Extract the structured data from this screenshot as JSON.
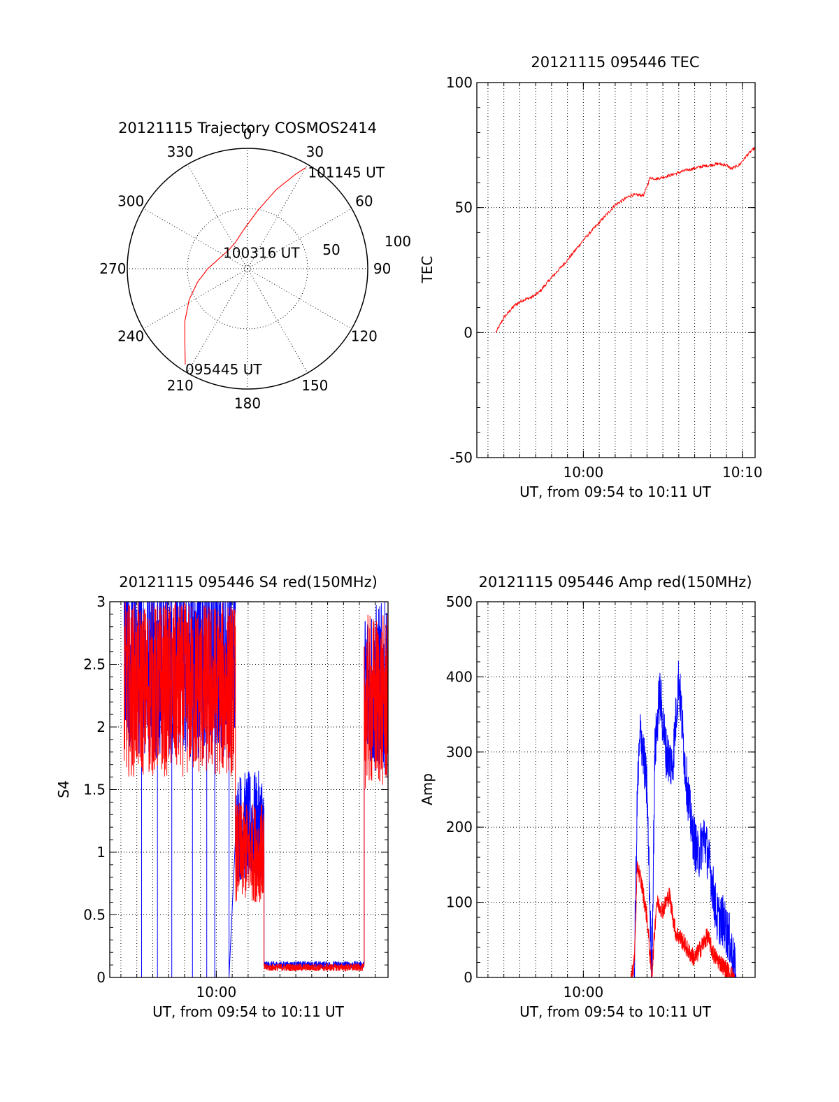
{
  "figure": {
    "panels": [
      "polar",
      "tec",
      "s4",
      "amp"
    ]
  },
  "chart_data": [
    {
      "id": "polar",
      "type": "line",
      "title": "20121115 Trajectory COSMOS2414",
      "projection": "polar",
      "azimuth_labels": [
        "0",
        "30",
        "60",
        "90",
        "120",
        "150",
        "180",
        "210",
        "240",
        "270",
        "300",
        "330"
      ],
      "elevation_rings": [
        0,
        50
      ],
      "ring_labels": [
        "50",
        "100"
      ],
      "rlim": [
        0,
        100
      ],
      "grid": true,
      "series": [
        {
          "color": "#ff0000",
          "points_az_r": [
            [
              213,
              95
            ],
            [
              220,
              81
            ],
            [
              230,
              68
            ],
            [
              242,
              55
            ],
            [
              255,
              43
            ],
            [
              270,
              33
            ],
            [
              290,
              25
            ],
            [
              315,
              22
            ],
            [
              335,
              24
            ],
            [
              355,
              33
            ],
            [
              10,
              49
            ],
            [
              20,
              70
            ],
            [
              27,
              88
            ],
            [
              30,
              97
            ]
          ]
        }
      ],
      "annotations": [
        {
          "text": "095445 UT",
          "az": 213,
          "r": 95
        },
        {
          "text": "100316 UT",
          "az": 0,
          "r": 2
        },
        {
          "text": "101145 UT",
          "az": 30,
          "r": 97
        }
      ]
    },
    {
      "id": "tec",
      "type": "line",
      "title": "20121115 095446 TEC",
      "xlabel": "UT, from 09:54 to 10:11 UT",
      "ylabel": "TEC",
      "xlim": [
        -6.7,
        10.8
      ],
      "ylim": [
        -50,
        100
      ],
      "yticks": [
        -50,
        0,
        50,
        100
      ],
      "xticks": [
        {
          "value": 0,
          "label": "10:00"
        },
        {
          "value": 10,
          "label": "10:10"
        }
      ],
      "x_minor_step": 1,
      "grid": true,
      "series": [
        {
          "color": "#ff0000",
          "x": [
            -5.5,
            -5.0,
            -4.3,
            -3.8,
            -3.3,
            -2.8,
            -2.0,
            -1.0,
            0.0,
            1.0,
            2.0,
            3.0,
            3.8,
            4.2,
            4.6,
            5.5,
            6.5,
            7.5,
            8.5,
            9.0,
            9.3,
            9.8,
            10.3,
            10.8
          ],
          "y": [
            0,
            6,
            11,
            13,
            14,
            16,
            22,
            29,
            37,
            44,
            51,
            55,
            55,
            62,
            61.5,
            63,
            65,
            66.5,
            67.5,
            67,
            65.5,
            67,
            71,
            74
          ]
        }
      ]
    },
    {
      "id": "s4",
      "type": "line",
      "title": "20121115 095446 S4 red(150MHz)",
      "xlabel": "UT, from 09:54 to 10:11 UT",
      "ylabel": "S4",
      "xlim": [
        -6.7,
        10.8
      ],
      "ylim": [
        0,
        3
      ],
      "yticks": [
        0,
        0.5,
        1,
        1.5,
        2,
        2.5,
        3
      ],
      "xticks": [
        {
          "value": 0,
          "label": "10:00"
        }
      ],
      "x_minor_step": 1,
      "grid": true,
      "series": [
        {
          "color": "#0000ff",
          "segments": [
            {
              "x0": -5.8,
              "x1": 1.2,
              "center": 2.5,
              "amp": 0.75,
              "spikes": [
                -4.7,
                -3.7,
                -2.8,
                -1.5,
                -0.6,
                -0.1,
                0.8
              ]
            },
            {
              "x0": 1.2,
              "x1": 3.0,
              "center": 1.2,
              "amp": 0.45,
              "spikes": []
            },
            {
              "x0": 3.0,
              "x1": 9.3,
              "center": 0.1,
              "amp": 0.03,
              "spikes": []
            },
            {
              "x0": 9.3,
              "x1": 10.8,
              "center": 2.3,
              "amp": 0.7,
              "spikes": []
            }
          ]
        },
        {
          "color": "#ff0000",
          "segments": [
            {
              "x0": -5.8,
              "x1": 1.2,
              "center": 2.3,
              "amp": 0.7,
              "spikes": []
            },
            {
              "x0": 1.2,
              "x1": 3.0,
              "center": 1.0,
              "amp": 0.4,
              "spikes": []
            },
            {
              "x0": 3.0,
              "x1": 9.3,
              "center": 0.08,
              "amp": 0.03,
              "spikes": []
            },
            {
              "x0": 9.3,
              "x1": 10.8,
              "center": 2.2,
              "amp": 0.7,
              "spikes": []
            }
          ]
        }
      ]
    },
    {
      "id": "amp",
      "type": "line",
      "title": "20121115 095446 Amp red(150MHz)",
      "xlabel": "UT, from 09:54 to 10:11 UT",
      "ylabel": "Amp",
      "xlim": [
        -6.7,
        10.8
      ],
      "ylim": [
        0,
        500
      ],
      "yticks": [
        0,
        100,
        200,
        300,
        400,
        500
      ],
      "xticks": [
        {
          "value": 0,
          "label": "10:00"
        }
      ],
      "x_minor_step": 1,
      "grid": true,
      "series": [
        {
          "color": "#0000ff",
          "x": [
            -5.5,
            3.2,
            3.4,
            3.6,
            4.0,
            4.3,
            4.5,
            4.8,
            5.2,
            5.6,
            6.0,
            6.4,
            6.8,
            7.2,
            7.6,
            8.0,
            8.4,
            8.8,
            9.2,
            9.6,
            10.8
          ],
          "y": [
            0,
            0,
            250,
            330,
            250,
            0,
            300,
            380,
            300,
            280,
            400,
            280,
            200,
            160,
            190,
            140,
            80,
            75,
            50,
            0,
            0
          ],
          "noise": 70
        },
        {
          "color": "#ff0000",
          "x": [
            -5.5,
            3.0,
            3.2,
            3.4,
            3.7,
            4.0,
            4.3,
            4.6,
            5.0,
            5.4,
            5.8,
            6.2,
            6.6,
            7.0,
            7.4,
            7.8,
            8.2,
            8.6,
            9.0,
            9.5,
            10.8
          ],
          "y": [
            0,
            0,
            20,
            150,
            120,
            80,
            0,
            100,
            90,
            110,
            60,
            50,
            35,
            25,
            40,
            55,
            30,
            20,
            10,
            0,
            0
          ],
          "noise": 25
        }
      ]
    }
  ]
}
